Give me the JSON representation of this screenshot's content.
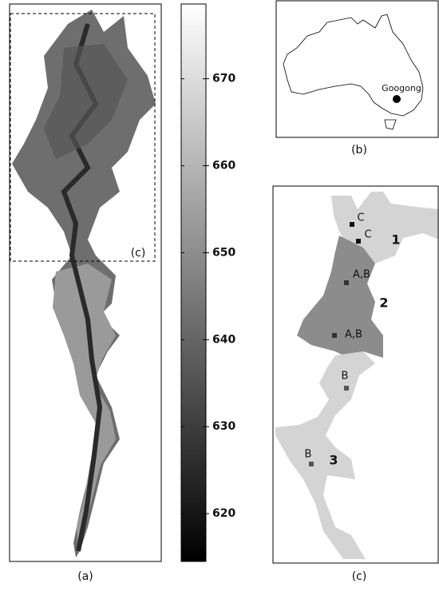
{
  "panel_a": {
    "label": "(a)",
    "inset_label": "(c)"
  },
  "colorbar": {
    "min": 614.5,
    "max": 678.6,
    "ticks": [
      620,
      630,
      640,
      650,
      660,
      670
    ]
  },
  "panel_b": {
    "label": "(b)",
    "site": "Googong"
  },
  "panel_c": {
    "label": "(c)",
    "zones": [
      "1",
      "2",
      "3"
    ],
    "points": [
      "C",
      "C",
      "A,B",
      "A,B",
      "B",
      "B"
    ]
  }
}
